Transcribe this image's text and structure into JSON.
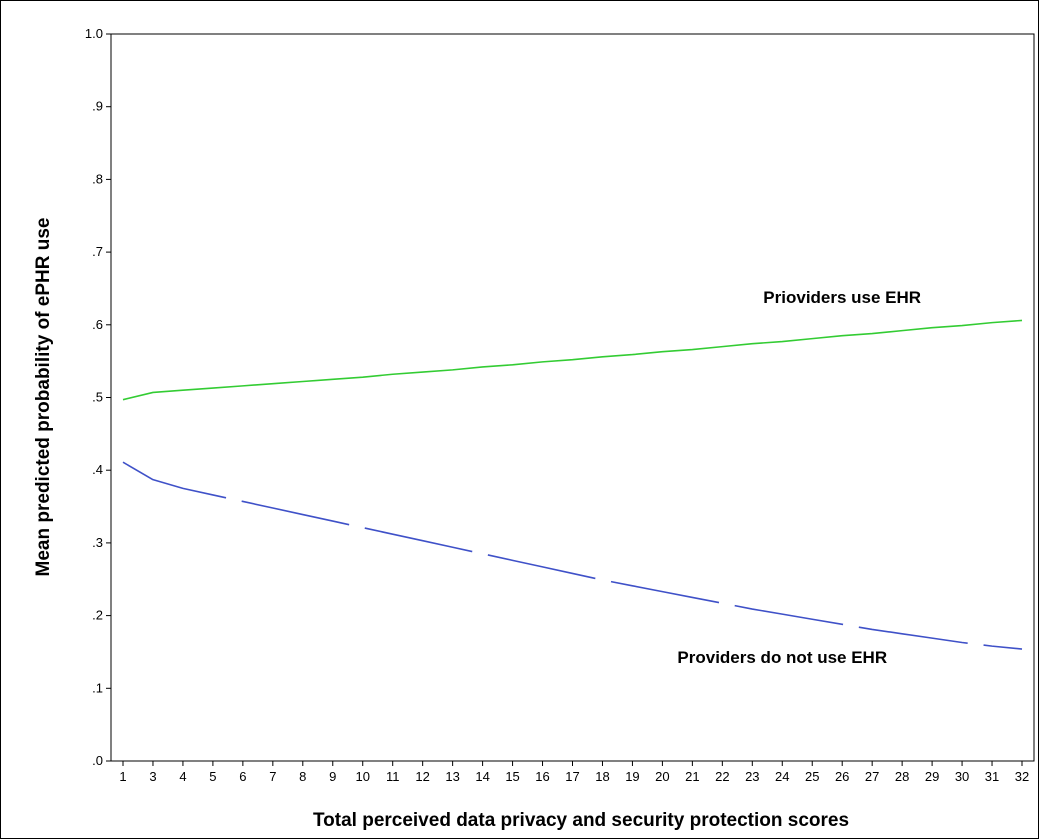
{
  "chart_data": {
    "type": "line",
    "title": "",
    "xlabel": "Total perceived data privacy and security protection scores",
    "ylabel": "Mean predicted probability of ePHR use",
    "x_ticks": [
      "1",
      "3",
      "4",
      "5",
      "6",
      "7",
      "8",
      "9",
      "10",
      "11",
      "12",
      "13",
      "14",
      "15",
      "16",
      "17",
      "18",
      "19",
      "20",
      "21",
      "22",
      "23",
      "24",
      "25",
      "26",
      "27",
      "28",
      "29",
      "30",
      "31",
      "32"
    ],
    "y_ticks": [
      {
        "value": 0.0,
        "label": ".0"
      },
      {
        "value": 0.1,
        "label": ".1"
      },
      {
        "value": 0.2,
        "label": ".2"
      },
      {
        "value": 0.3,
        "label": ".3"
      },
      {
        "value": 0.4,
        "label": ".4"
      },
      {
        "value": 0.5,
        "label": ".5"
      },
      {
        "value": 0.6,
        "label": ".6"
      },
      {
        "value": 0.7,
        "label": ".7"
      },
      {
        "value": 0.8,
        "label": ".8"
      },
      {
        "value": 0.9,
        "label": ".9"
      },
      {
        "value": 1.0,
        "label": "1.0"
      }
    ],
    "ylim": [
      0,
      1
    ],
    "grid": false,
    "series": [
      {
        "name": "",
        "color": "#33cc33",
        "dash": "solid",
        "x": [
          "1",
          "3",
          "4",
          "5",
          "6",
          "7",
          "8",
          "9",
          "10",
          "11",
          "12",
          "13",
          "14",
          "15",
          "16",
          "17",
          "18",
          "19",
          "20",
          "21",
          "22",
          "23",
          "24",
          "25",
          "26",
          "27",
          "28",
          "29",
          "30",
          "31",
          "32"
        ],
        "values": [
          0.497,
          0.507,
          0.51,
          0.513,
          0.516,
          0.519,
          0.522,
          0.525,
          0.528,
          0.532,
          0.535,
          0.538,
          0.542,
          0.545,
          0.549,
          0.552,
          0.556,
          0.559,
          0.563,
          0.566,
          0.57,
          0.574,
          0.577,
          0.581,
          0.585,
          0.588,
          0.592,
          0.596,
          0.599,
          0.603,
          0.606
        ]
      },
      {
        "name": "",
        "color": "#3f51c8",
        "dash": "long-dash",
        "x": [
          "1",
          "3",
          "4",
          "5",
          "6",
          "7",
          "8",
          "9",
          "10",
          "11",
          "12",
          "13",
          "14",
          "15",
          "16",
          "17",
          "18",
          "19",
          "20",
          "21",
          "22",
          "23",
          "24",
          "25",
          "26",
          "27",
          "28",
          "29",
          "30",
          "31",
          "32"
        ],
        "values": [
          0.411,
          0.387,
          0.375,
          0.366,
          0.357,
          0.348,
          0.339,
          0.33,
          0.321,
          0.312,
          0.303,
          0.294,
          0.285,
          0.276,
          0.267,
          0.258,
          0.249,
          0.241,
          0.233,
          0.225,
          0.217,
          0.209,
          0.202,
          0.195,
          0.188,
          0.181,
          0.175,
          0.169,
          0.163,
          0.158,
          0.154
        ]
      }
    ],
    "annotations": [
      {
        "text": "Prioviders use EHR",
        "series": 0,
        "x": "26",
        "y": 0.63
      },
      {
        "text": "Providers do not use EHR",
        "series": 1,
        "x": "24",
        "y": 0.135
      }
    ]
  }
}
